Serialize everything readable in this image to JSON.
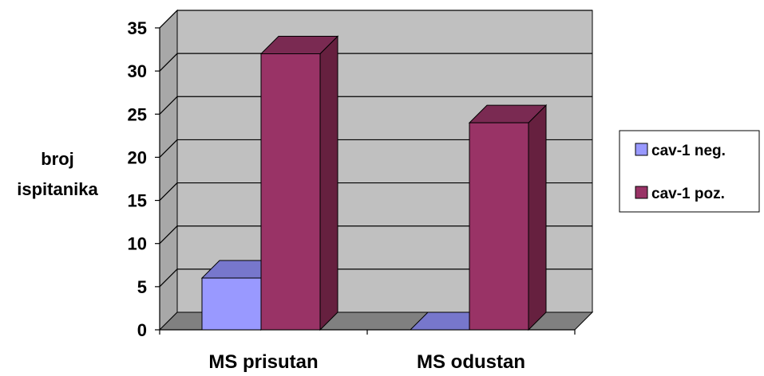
{
  "chart_data": {
    "type": "bar",
    "title": "",
    "categories": [
      "MS prisutan",
      "MS odustan"
    ],
    "series": [
      {
        "name": "cav-1 neg.",
        "values": [
          6,
          0
        ]
      },
      {
        "name": "cav-1 poz.",
        "values": [
          32,
          24
        ]
      }
    ],
    "ylabel_lines": [
      "broj",
      "ispitanika"
    ],
    "xlabel": "",
    "ylim": [
      0,
      35
    ],
    "yticks": [
      "0",
      "5",
      "10",
      "15",
      "20",
      "25",
      "30",
      "35"
    ],
    "grid": true,
    "legend_position": "right",
    "colors": {
      "series": [
        "#9999ff",
        "#993366"
      ],
      "series_top": [
        "#7777cc",
        "#7a2a52"
      ],
      "series_side": [
        "#6666aa",
        "#66203f"
      ],
      "plot_wall": "#c0c0c0",
      "floor": "#808080"
    }
  }
}
